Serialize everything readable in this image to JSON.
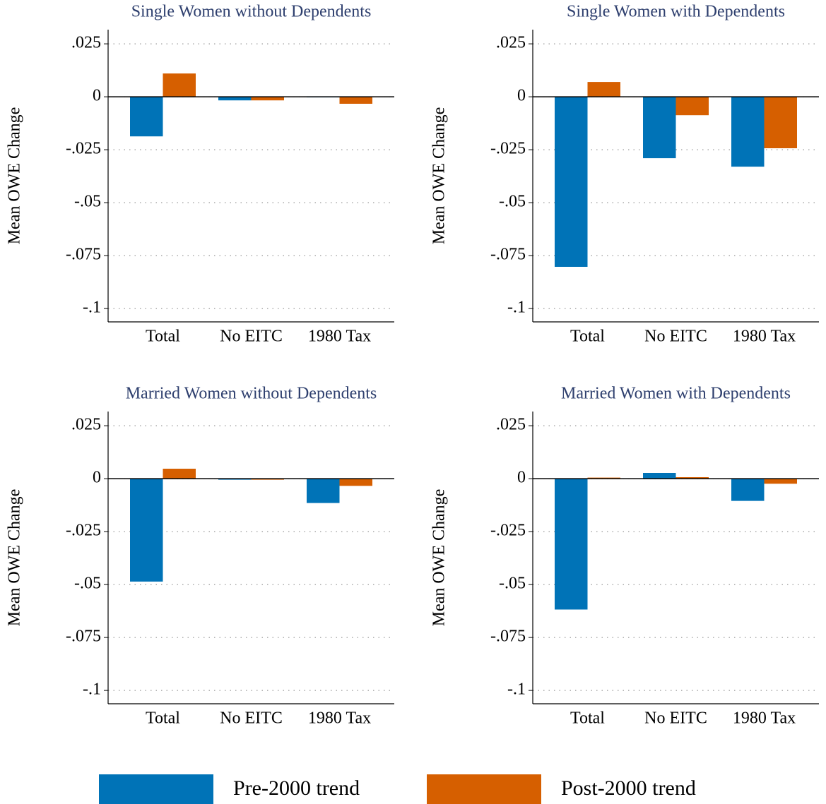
{
  "chart_data": [
    {
      "type": "bar",
      "title": "Single Women without Dependents",
      "ylabel": "Mean OWE Change",
      "categories": [
        "Total",
        "No EITC",
        "1980 Tax"
      ],
      "series": [
        {
          "name": "Pre-2000 trend",
          "color": "#0073b7",
          "values": [
            -0.0187,
            -0.0017,
            -0.0003
          ]
        },
        {
          "name": "Post-2000 trend",
          "color": "#d65f00",
          "values": [
            0.011,
            -0.0017,
            -0.0033
          ]
        }
      ],
      "ylim": [
        -0.1063,
        0.0317
      ],
      "yticks": [
        {
          "value": 0.025,
          "label": ".025"
        },
        0,
        {
          "value": -0.025,
          "label": "-.025"
        },
        {
          "value": -0.05,
          "label": "-.05"
        },
        {
          "value": -0.075,
          "label": "-.075"
        },
        {
          "value": -0.1,
          "label": "-.1"
        }
      ],
      "grid": true
    },
    {
      "type": "bar",
      "title": "Single Women with Dependents",
      "ylabel": "Mean OWE Change",
      "categories": [
        "Total",
        "No EITC",
        "1980 Tax"
      ],
      "series": [
        {
          "name": "Pre-2000 trend",
          "color": "#0073b7",
          "values": [
            -0.0803,
            -0.029,
            -0.033
          ]
        },
        {
          "name": "Post-2000 trend",
          "color": "#d65f00",
          "values": [
            0.007,
            -0.0087,
            -0.0243
          ]
        }
      ],
      "ylim": [
        -0.1063,
        0.0317
      ],
      "yticks": [
        {
          "value": 0.025,
          "label": ".025"
        },
        0,
        {
          "value": -0.025,
          "label": "-.025"
        },
        {
          "value": -0.05,
          "label": "-.05"
        },
        {
          "value": -0.075,
          "label": "-.075"
        },
        {
          "value": -0.1,
          "label": "-.1"
        }
      ],
      "grid": true
    },
    {
      "type": "bar",
      "title": "Married Women without Dependents",
      "ylabel": "Mean OWE Change",
      "categories": [
        "Total",
        "No EITC",
        "1980 Tax"
      ],
      "series": [
        {
          "name": "Pre-2000 trend",
          "color": "#0073b7",
          "values": [
            -0.0486,
            -0.0005,
            -0.0115
          ]
        },
        {
          "name": "Post-2000 trend",
          "color": "#d65f00",
          "values": [
            0.0047,
            -0.0005,
            -0.0034
          ]
        }
      ],
      "ylim": [
        -0.1063,
        0.0317
      ],
      "yticks": [
        {
          "value": 0.025,
          "label": ".025"
        },
        0,
        {
          "value": -0.025,
          "label": "-.025"
        },
        {
          "value": -0.05,
          "label": "-.05"
        },
        {
          "value": -0.075,
          "label": "-.075"
        },
        {
          "value": -0.1,
          "label": "-.1"
        }
      ],
      "grid": true
    },
    {
      "type": "bar",
      "title": "Married Women with Dependents",
      "ylabel": "Mean OWE Change",
      "categories": [
        "Total",
        "No EITC",
        "1980 Tax"
      ],
      "series": [
        {
          "name": "Pre-2000 trend",
          "color": "#0073b7",
          "values": [
            -0.0618,
            0.0027,
            -0.0105
          ]
        },
        {
          "name": "Post-2000 trend",
          "color": "#d65f00",
          "values": [
            0.0005,
            0.0007,
            -0.0024
          ]
        }
      ],
      "ylim": [
        -0.1063,
        0.0317
      ],
      "yticks": [
        {
          "value": 0.025,
          "label": ".025"
        },
        0,
        {
          "value": -0.025,
          "label": "-.025"
        },
        {
          "value": -0.05,
          "label": "-.05"
        },
        {
          "value": -0.075,
          "label": "-.075"
        },
        {
          "value": -0.1,
          "label": "-.1"
        }
      ],
      "grid": true
    }
  ]
}
